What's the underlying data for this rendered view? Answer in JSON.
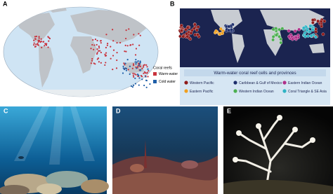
{
  "panels": {
    "a": "A",
    "b": "B",
    "c": "C",
    "d": "D",
    "e": "E"
  },
  "legend_a": {
    "title": "Coral reefs",
    "items": [
      {
        "name": "Warm-water",
        "color": "#c8323c"
      },
      {
        "name": "Cold water",
        "color": "#1f5fa8"
      }
    ]
  },
  "legend_b": {
    "title": "Warm-water coral reef cells and provinces",
    "items": [
      {
        "name": "Western Pacific",
        "color": "#8e1b1b"
      },
      {
        "name": "Caribbean & Gulf of Mexico",
        "color": "#1d2d6b"
      },
      {
        "name": "Eastern Indian Ocean",
        "color": "#b0308a"
      },
      {
        "name": "Eastern Pacific",
        "color": "#f0a020"
      },
      {
        "name": "Western Indian Ocean",
        "color": "#4caf50"
      },
      {
        "name": "Coral Triangle & SE Asia",
        "color": "#2fb3c4"
      }
    ]
  }
}
